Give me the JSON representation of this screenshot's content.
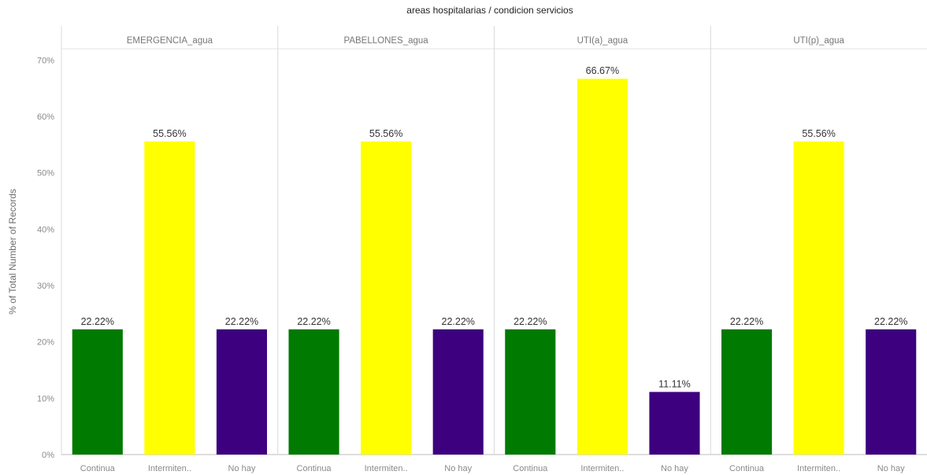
{
  "chart_data": {
    "type": "bar",
    "title": "areas hospitalarias / condicion servicios",
    "ylabel": "% of Total Number of Records",
    "ylim": [
      0,
      72
    ],
    "yticks": [
      0,
      10,
      20,
      30,
      40,
      50,
      60,
      70
    ],
    "ytick_suffix": "%",
    "grid": false,
    "categories": [
      "Continua",
      "Intermiten..",
      "No hay"
    ],
    "category_colors": [
      "#007a00",
      "#ffff00",
      "#3d007f"
    ],
    "panels": [
      {
        "name": "EMERGENCIA_agua",
        "values": [
          22.22,
          55.56,
          22.22
        ],
        "labels": [
          "22.22%",
          "55.56%",
          "22.22%"
        ]
      },
      {
        "name": "PABELLONES_agua",
        "values": [
          22.22,
          55.56,
          22.22
        ],
        "labels": [
          "22.22%",
          "55.56%",
          "22.22%"
        ]
      },
      {
        "name": "UTI(a)_agua",
        "values": [
          22.22,
          66.67,
          11.11
        ],
        "labels": [
          "22.22%",
          "66.67%",
          "11.11%"
        ]
      },
      {
        "name": "UTI(p)_agua",
        "values": [
          22.22,
          55.56,
          22.22
        ],
        "labels": [
          "22.22%",
          "55.56%",
          "22.22%"
        ]
      }
    ]
  }
}
